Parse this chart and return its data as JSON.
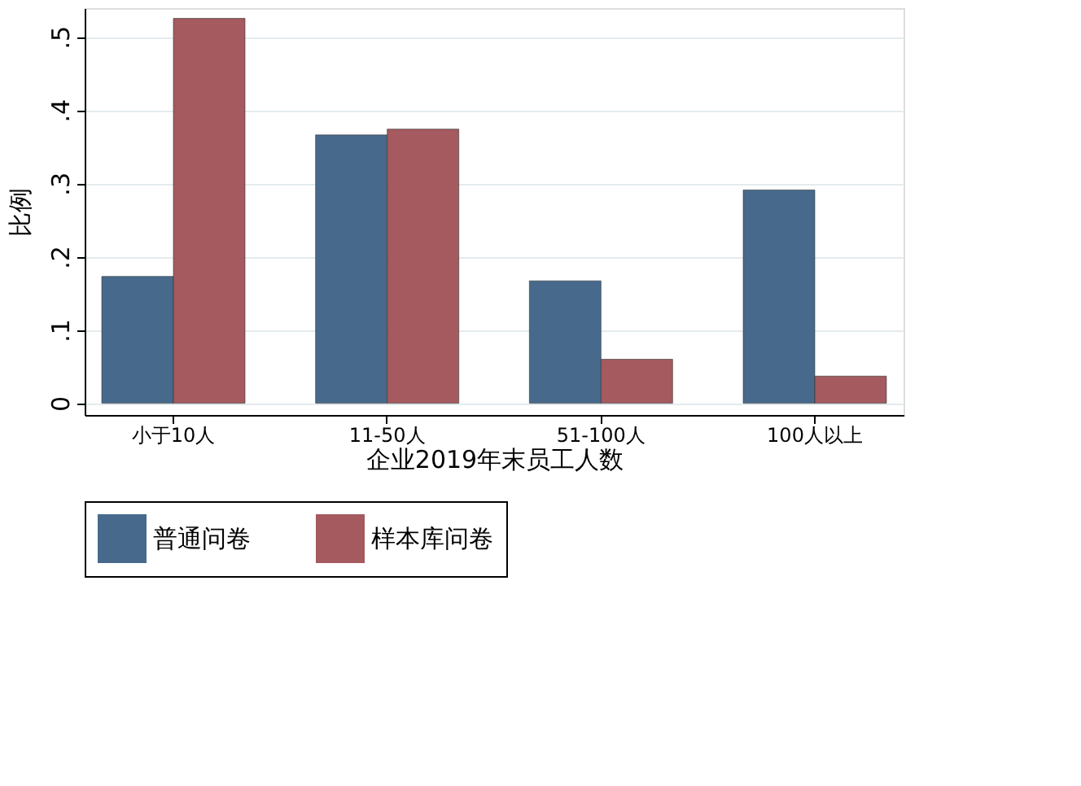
{
  "chart_data": {
    "type": "bar",
    "xlabel": "企业2019年末员工人数",
    "ylabel": "比例",
    "categories": [
      "小于10人",
      "11-50人",
      "51-100人",
      "100人以上"
    ],
    "series": [
      {
        "name": "普通问卷",
        "color": "#476a8c",
        "values": [
          0.173,
          0.366,
          0.167,
          0.291
        ]
      },
      {
        "name": "样本库问卷",
        "color": "#a45a5e",
        "values": [
          0.525,
          0.374,
          0.06,
          0.037
        ]
      }
    ],
    "ylim": [
      -0.016,
      0.539
    ],
    "yticks": [
      {
        "value": 0,
        "label": "0"
      },
      {
        "value": 0.1,
        "label": ".1"
      },
      {
        "value": 0.2,
        "label": ".2"
      },
      {
        "value": 0.3,
        "label": ".3"
      },
      {
        "value": 0.4,
        "label": ".4"
      },
      {
        "value": 0.5,
        "label": ".5"
      }
    ],
    "grid": "y",
    "legend": "bottom"
  }
}
